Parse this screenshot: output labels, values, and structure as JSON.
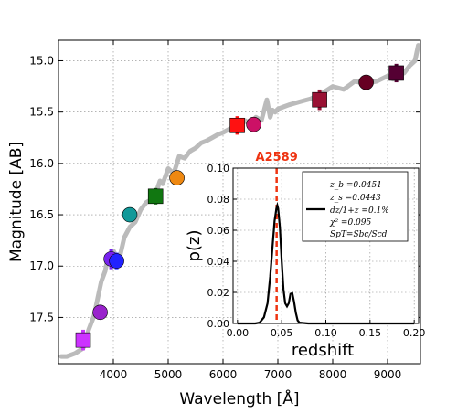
{
  "chart_data": [
    {
      "type": "scatter",
      "xlabel": "Wavelength [Å]",
      "ylabel": "Magnitude [AB]",
      "xlim": [
        3000,
        9600
      ],
      "ylim": [
        17.95,
        14.8
      ],
      "y_inverted": true,
      "grid": true,
      "xticks": [
        4000,
        5000,
        6000,
        7000,
        8000,
        9000
      ],
      "yticks": [
        15.0,
        15.5,
        16.0,
        16.5,
        17.0,
        17.5
      ],
      "template_color": "#bbbbbb",
      "template": {
        "x": [
          3050,
          3150,
          3300,
          3450,
          3550,
          3650,
          3720,
          3780,
          3850,
          3900,
          3950,
          4000,
          4100,
          4200,
          4300,
          4400,
          4500,
          4600,
          4700,
          4800,
          4850,
          4900,
          5000,
          5100,
          5200,
          5300,
          5400,
          5500,
          5600,
          5700,
          5800,
          5900,
          6000,
          6100,
          6200,
          6300,
          6400,
          6500,
          6600,
          6700,
          6800,
          6860,
          6900,
          6950,
          7000,
          7100,
          7200,
          7400,
          7600,
          7800,
          8000,
          8200,
          8400,
          8600,
          8800,
          9000,
          9100,
          9200,
          9300,
          9400,
          9500,
          9560
        ],
        "y": [
          17.88,
          17.88,
          17.85,
          17.8,
          17.62,
          17.48,
          17.3,
          17.15,
          17.05,
          16.92,
          16.98,
          16.85,
          16.95,
          16.72,
          16.62,
          16.57,
          16.45,
          16.38,
          16.35,
          16.25,
          16.17,
          16.2,
          16.05,
          16.1,
          15.93,
          15.95,
          15.88,
          15.85,
          15.8,
          15.78,
          15.75,
          15.72,
          15.7,
          15.67,
          15.64,
          15.66,
          15.58,
          15.62,
          15.55,
          15.58,
          15.38,
          15.55,
          15.48,
          15.5,
          15.47,
          15.45,
          15.43,
          15.4,
          15.37,
          15.32,
          15.25,
          15.28,
          15.2,
          15.22,
          15.2,
          15.15,
          15.18,
          15.08,
          15.12,
          15.05,
          15.0,
          14.85
        ]
      },
      "points": [
        {
          "x": 3450,
          "y": 17.72,
          "yerr": 0.1,
          "xerr": 70,
          "shape": "square",
          "color": "#cc33ff"
        },
        {
          "x": 3760,
          "y": 17.45,
          "yerr": 0.07,
          "xerr": 0,
          "shape": "circle",
          "color": "#9922cc"
        },
        {
          "x": 3960,
          "y": 16.93,
          "yerr": 0.1,
          "xerr": 0,
          "shape": "circle",
          "color": "#7722ee"
        },
        {
          "x": 4060,
          "y": 16.95,
          "yerr": 0.08,
          "xerr": 0,
          "shape": "circle",
          "color": "#2222ff"
        },
        {
          "x": 4300,
          "y": 16.5,
          "yerr": 0.0,
          "xerr": 0,
          "shape": "circle",
          "color": "#119999"
        },
        {
          "x": 4770,
          "y": 16.32,
          "yerr": 0.08,
          "xerr": 70,
          "shape": "square",
          "color": "#117711"
        },
        {
          "x": 5160,
          "y": 16.14,
          "yerr": 0.0,
          "xerr": 0,
          "shape": "circle",
          "color": "#ee8811"
        },
        {
          "x": 6260,
          "y": 15.63,
          "yerr": 0.09,
          "xerr": 70,
          "shape": "square",
          "color": "#ff1111"
        },
        {
          "x": 6560,
          "y": 15.62,
          "yerr": 0.0,
          "xerr": 0,
          "shape": "circle",
          "color": "#cc1166"
        },
        {
          "x": 7760,
          "y": 15.38,
          "yerr": 0.1,
          "xerr": 70,
          "shape": "square",
          "color": "#991133"
        },
        {
          "x": 8610,
          "y": 15.21,
          "yerr": 0.0,
          "xerr": 0,
          "shape": "circle",
          "color": "#660022"
        },
        {
          "x": 9160,
          "y": 15.12,
          "yerr": 0.09,
          "xerr": 70,
          "shape": "square",
          "color": "#550033"
        }
      ]
    },
    {
      "type": "line",
      "xlabel": "redshift",
      "ylabel": "p(z)",
      "xlim": [
        -0.005,
        0.205
      ],
      "ylim": [
        0,
        0.1
      ],
      "grid": true,
      "xticks": [
        0.0,
        0.05,
        0.1,
        0.15,
        0.2
      ],
      "xtick_labels": [
        "0.00",
        "0.05",
        "0.10",
        "0.15",
        "0.20"
      ],
      "yticks": [
        0.0,
        0.02,
        0.04,
        0.06,
        0.08,
        0.1
      ],
      "ytick_labels": [
        "0.00",
        "0.02",
        "0.04",
        "0.06",
        "0.08",
        "0.10"
      ],
      "marker_line": {
        "x": 0.0443,
        "label": "A2589",
        "color": "#ee3311"
      },
      "legend_position": "top-right",
      "legend_lines": [
        "z_b =0.0451",
        "z_s =0.0443",
        "dz/1+z =0.1%",
        "χ² =0.095",
        "SpT=Sbc/Scd"
      ],
      "series_color": "#000000",
      "x": [
        0.0,
        0.01,
        0.02,
        0.025,
        0.03,
        0.034,
        0.037,
        0.04,
        0.042,
        0.044,
        0.0451,
        0.046,
        0.048,
        0.05,
        0.052,
        0.054,
        0.056,
        0.058,
        0.06,
        0.062,
        0.064,
        0.066,
        0.068,
        0.07,
        0.08,
        0.1,
        0.15,
        0.2
      ],
      "y": [
        0.0,
        0.0,
        0.0,
        0.0005,
        0.004,
        0.013,
        0.03,
        0.052,
        0.066,
        0.074,
        0.076,
        0.074,
        0.062,
        0.04,
        0.022,
        0.013,
        0.011,
        0.013,
        0.019,
        0.0195,
        0.014,
        0.007,
        0.002,
        0.0005,
        0.0,
        0.0,
        0.0,
        0.0
      ]
    }
  ]
}
